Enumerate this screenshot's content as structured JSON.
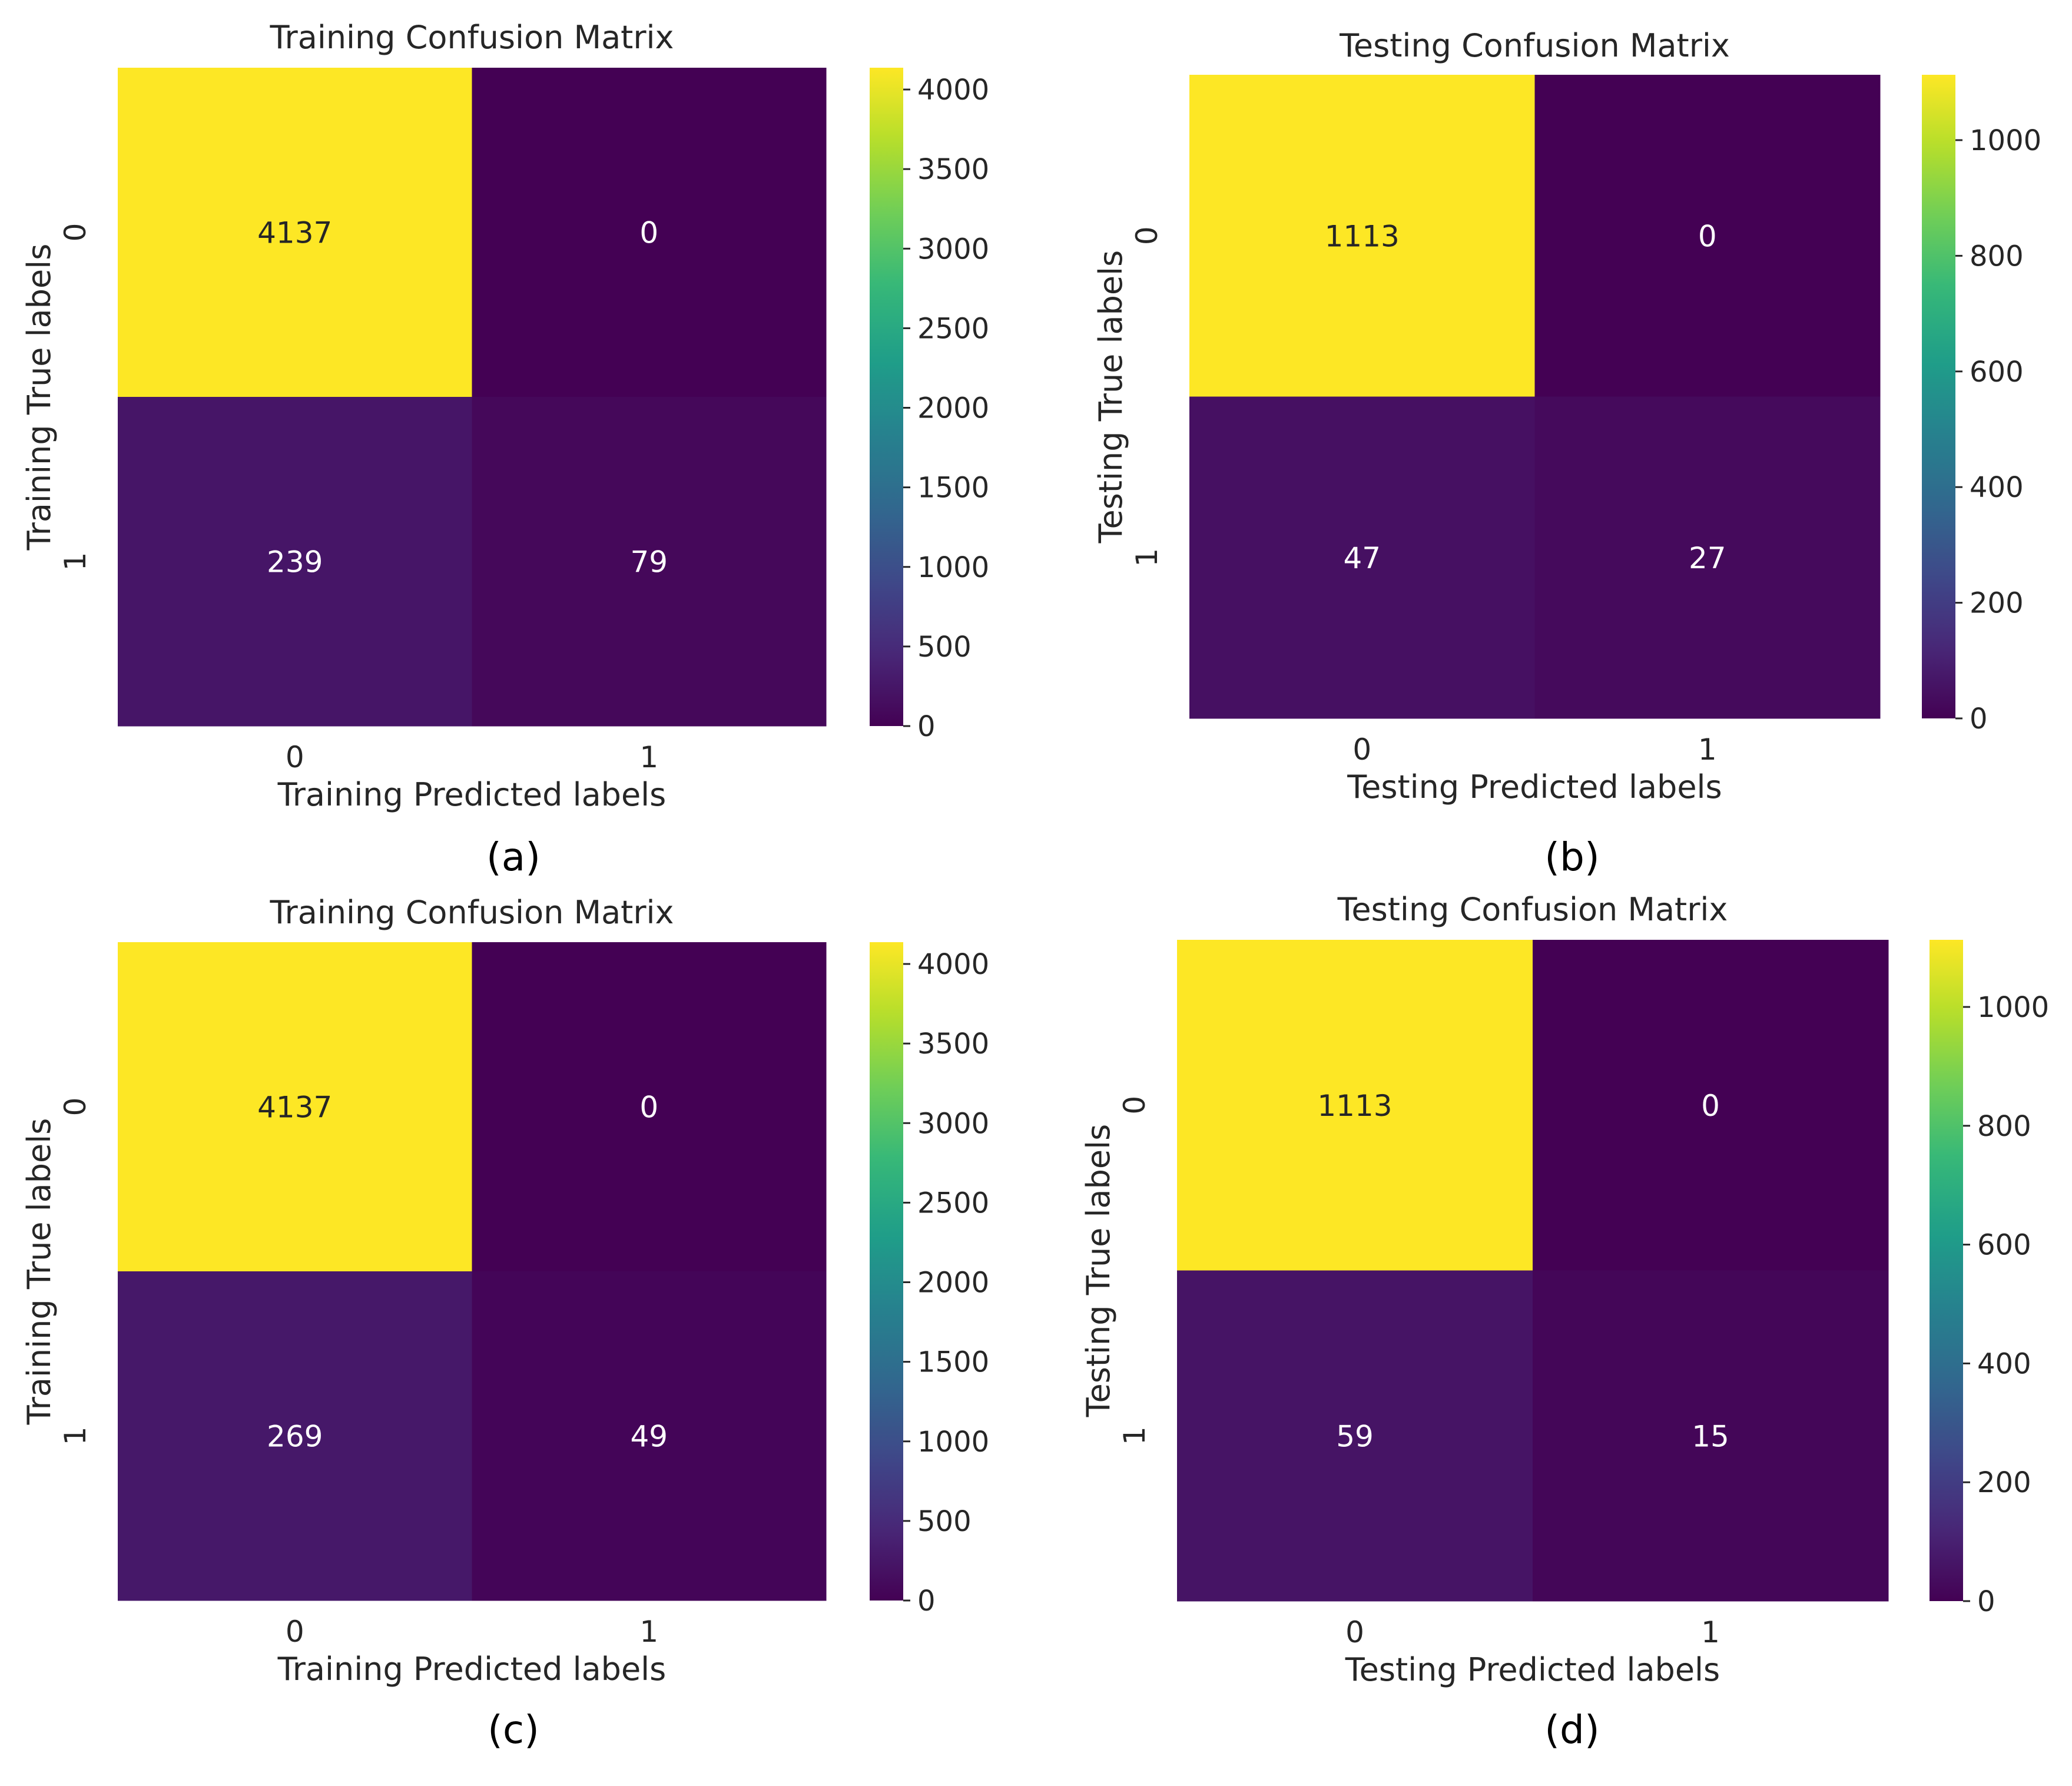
{
  "chart_data": [
    {
      "type": "heatmap",
      "panel": "(a)",
      "title": "Training Confusion Matrix",
      "xlabel": "Training Predicted labels",
      "ylabel": "Training True labels",
      "x_categories": [
        "0",
        "1"
      ],
      "y_categories": [
        "0",
        "1"
      ],
      "values": [
        [
          4137,
          0
        ],
        [
          239,
          79
        ]
      ],
      "colormap": "viridis",
      "colorbar": {
        "min": 0,
        "max": 4137,
        "ticks": [
          0,
          500,
          1000,
          1500,
          2000,
          2500,
          3000,
          3500,
          4000
        ]
      }
    },
    {
      "type": "heatmap",
      "panel": "(b)",
      "title": "Testing Confusion Matrix",
      "xlabel": "Testing Predicted labels",
      "ylabel": "Testing True labels",
      "x_categories": [
        "0",
        "1"
      ],
      "y_categories": [
        "0",
        "1"
      ],
      "values": [
        [
          1113,
          0
        ],
        [
          47,
          27
        ]
      ],
      "colormap": "viridis",
      "colorbar": {
        "min": 0,
        "max": 1113,
        "ticks": [
          0,
          200,
          400,
          600,
          800,
          1000
        ]
      }
    },
    {
      "type": "heatmap",
      "panel": "(c)",
      "title": "Training Confusion Matrix",
      "xlabel": "Training Predicted labels",
      "ylabel": "Training True labels",
      "x_categories": [
        "0",
        "1"
      ],
      "y_categories": [
        "0",
        "1"
      ],
      "values": [
        [
          4137,
          0
        ],
        [
          269,
          49
        ]
      ],
      "colormap": "viridis",
      "colorbar": {
        "min": 0,
        "max": 4137,
        "ticks": [
          0,
          500,
          1000,
          1500,
          2000,
          2500,
          3000,
          3500,
          4000
        ]
      }
    },
    {
      "type": "heatmap",
      "panel": "(d)",
      "title": "Testing Confusion Matrix",
      "xlabel": "Testing Predicted labels",
      "ylabel": "Testing True labels",
      "x_categories": [
        "0",
        "1"
      ],
      "y_categories": [
        "0",
        "1"
      ],
      "values": [
        [
          1113,
          0
        ],
        [
          59,
          15
        ]
      ],
      "colormap": "viridis",
      "colorbar": {
        "min": 0,
        "max": 1113,
        "ticks": [
          0,
          200,
          400,
          600,
          800,
          1000
        ]
      }
    }
  ],
  "colors": {
    "background": "#ffffff",
    "text": "#262626",
    "caption": "#000000",
    "label_on_light": "#262626",
    "label_on_dark": "#ffffff"
  }
}
